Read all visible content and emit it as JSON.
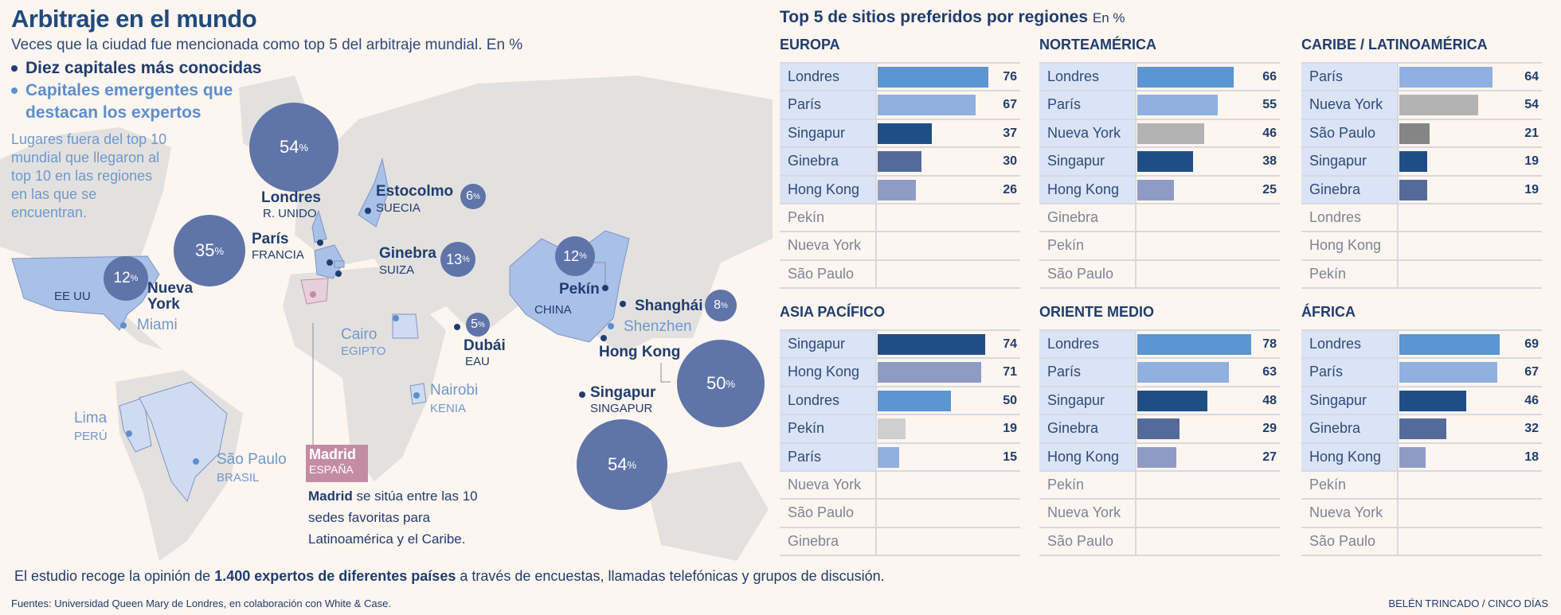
{
  "map": {
    "title": "Arbitraje en el mundo",
    "subtitle": "Veces que la ciudad fue mencionada como top 5 del arbitraje mundial. En %",
    "legend": {
      "known": "Diez capitales más conocidas",
      "emerging_1": "Capitales emergentes que",
      "emerging_2": "destacan los expertos",
      "description": "Lugares fuera del top 10 mundial que llegaron al top 10 en las regiones en las que se encuentran.",
      "known_color": "#1f3d6e",
      "emerging_color": "#5b8fce"
    },
    "bubbles": {
      "londres": {
        "city": "Londres",
        "country": "R. UNIDO",
        "value": "54",
        "pct": "%"
      },
      "paris": {
        "city": "París",
        "country": "FRANCIA",
        "value": "35",
        "pct": "%"
      },
      "ginebra": {
        "city": "Ginebra",
        "country": "SUIZA",
        "value": "13",
        "pct": "%"
      },
      "estocolmo": {
        "city": "Estocolmo",
        "country": "SUECIA",
        "value": "6",
        "pct": "%"
      },
      "nueva_york": {
        "city_1": "Nueva",
        "city_2": "York",
        "country": "EE UU",
        "value": "12",
        "pct": "%"
      },
      "dubai": {
        "city": "Dubái",
        "country": "EAU",
        "value": "5",
        "pct": "%"
      },
      "pekin": {
        "city": "Pekín",
        "country": "CHINA",
        "value": "12",
        "pct": "%"
      },
      "shanghai": {
        "city": "Shanghái",
        "value": "8",
        "pct": "%"
      },
      "hong_kong": {
        "city": "Hong Kong",
        "value": "50",
        "pct": "%"
      },
      "singapur": {
        "city": "Singapur",
        "country": "SINGAPUR",
        "value": "54",
        "pct": "%"
      }
    },
    "emerging": {
      "miami": "Miami",
      "cairo": "Cairo",
      "egipto": "EGIPTO",
      "nairobi": "Nairobi",
      "kenia": "KENIA",
      "lima": "Lima",
      "peru": "PERÚ",
      "sao_paulo": "São Paulo",
      "brasil": "BRASIL",
      "shenzhen": "Shenzhen"
    },
    "madrid": {
      "city": "Madrid",
      "country": "ESPAÑA",
      "note_bold": "Madrid",
      "note_1": " se sitúa entre las 10",
      "note_2": "sedes favoritas para",
      "note_3": "Latinoamérica y el Caribe."
    }
  },
  "footer": {
    "text_1": "El estudio recoge la opinión de ",
    "text_bold": "1.400 expertos de diferentes países",
    "text_2": " a través de encuestas, llamadas telefónicas y grupos de discusión.",
    "sources": "Fuentes: Universidad Queen Mary de Londres, en colaboración con White & Case.",
    "credit": "BELÉN TRINCADO / CINCO DÍAS"
  },
  "chart_data": {
    "type": "bar",
    "title": "Top 5 de sitios preferidos por regiones",
    "unit": "En %",
    "colors": {
      "Londres": "#5b95d2",
      "París": "#8fb0e0",
      "Singapur": "#1f4e87",
      "Ginebra": "#546a9b",
      "Hong Kong": "#8e9cc5",
      "Nueva York": "#b3b3b3",
      "São Paulo": "#858585",
      "Pekín": "#cfcfcf"
    },
    "regions": [
      {
        "name": "EUROPA",
        "top": [
          [
            "Londres",
            76
          ],
          [
            "París",
            67
          ],
          [
            "Singapur",
            37
          ],
          [
            "Ginebra",
            30
          ],
          [
            "Hong Kong",
            26
          ]
        ],
        "rest": [
          "Pekín",
          "Nueva York",
          "São Paulo"
        ]
      },
      {
        "name": "NORTEAMÉRICA",
        "top": [
          [
            "Londres",
            66
          ],
          [
            "París",
            55
          ],
          [
            "Nueva York",
            46
          ],
          [
            "Singapur",
            38
          ],
          [
            "Hong Kong",
            25
          ]
        ],
        "rest": [
          "Ginebra",
          "Pekín",
          "São Paulo"
        ]
      },
      {
        "name": "CARIBE / LATINOAMÉRICA",
        "top": [
          [
            "París",
            64
          ],
          [
            "Nueva York",
            54
          ],
          [
            "São Paulo",
            21
          ],
          [
            "Singapur",
            19
          ],
          [
            "Ginebra",
            19
          ]
        ],
        "rest": [
          "Londres",
          "Hong Kong",
          "Pekín"
        ]
      },
      {
        "name": "ASIA PACÍFICO",
        "top": [
          [
            "Singapur",
            74
          ],
          [
            "Hong Kong",
            71
          ],
          [
            "Londres",
            50
          ],
          [
            "Pekín",
            19
          ],
          [
            "París",
            15
          ]
        ],
        "rest": [
          "Nueva York",
          "São Paulo",
          "Ginebra"
        ]
      },
      {
        "name": "ORIENTE MEDIO",
        "top": [
          [
            "Londres",
            78
          ],
          [
            "París",
            63
          ],
          [
            "Singapur",
            48
          ],
          [
            "Ginebra",
            29
          ],
          [
            "Hong Kong",
            27
          ]
        ],
        "rest": [
          "Pekín",
          "Nueva York",
          "São Paulo"
        ]
      },
      {
        "name": "ÁFRICA",
        "top": [
          [
            "Londres",
            69
          ],
          [
            "París",
            67
          ],
          [
            "Singapur",
            46
          ],
          [
            "Ginebra",
            32
          ],
          [
            "Hong Kong",
            18
          ]
        ],
        "rest": [
          "Pekín",
          "Nueva York",
          "São Paulo"
        ]
      }
    ]
  }
}
